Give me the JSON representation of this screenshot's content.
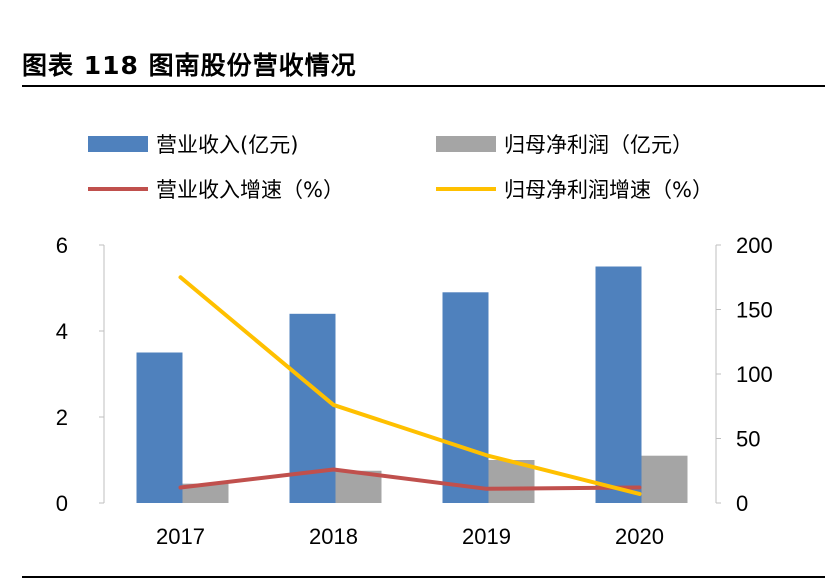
{
  "title": "图表 118 图南股份营收情况",
  "chart_data": {
    "type": "bar+line",
    "categories": [
      "2017",
      "2018",
      "2019",
      "2020"
    ],
    "bar_series": [
      {
        "name": "营业收入(亿元)",
        "axis": "left",
        "color": "#4F81BD",
        "values": [
          3.5,
          4.4,
          4.9,
          5.5
        ]
      },
      {
        "name": "归母净利润（亿元）",
        "axis": "left",
        "color": "#A5A5A5",
        "values": [
          0.45,
          0.75,
          1.0,
          1.1
        ]
      }
    ],
    "line_series": [
      {
        "name": "营业收入增速（%）",
        "axis": "right",
        "color": "#C0504D",
        "values": [
          12,
          26,
          11,
          12
        ]
      },
      {
        "name": "归母净利润增速（%）",
        "axis": "right",
        "color": "#FFC000",
        "values": [
          175,
          76,
          37,
          7
        ]
      }
    ],
    "left_axis": {
      "min": 0,
      "max": 6,
      "ticks": [
        "0",
        "2",
        "4",
        "6"
      ]
    },
    "right_axis": {
      "min": 0,
      "max": 200,
      "ticks": [
        "0",
        "50",
        "100",
        "150",
        "200"
      ]
    },
    "legend_position": "top"
  }
}
